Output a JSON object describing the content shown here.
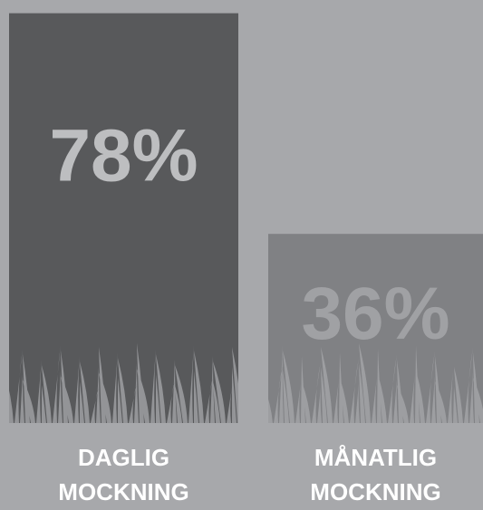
{
  "chart_data": {
    "type": "bar",
    "categories": [
      "DAGLIG MOCKNING",
      "MÅNATLIG MOCKNING"
    ],
    "values": [
      78,
      36
    ],
    "value_labels": [
      "78%",
      "36%"
    ],
    "colors": [
      "#58595b",
      "#808184"
    ],
    "label_colors": [
      "#bdbec0",
      "#a0a1a4"
    ]
  }
}
